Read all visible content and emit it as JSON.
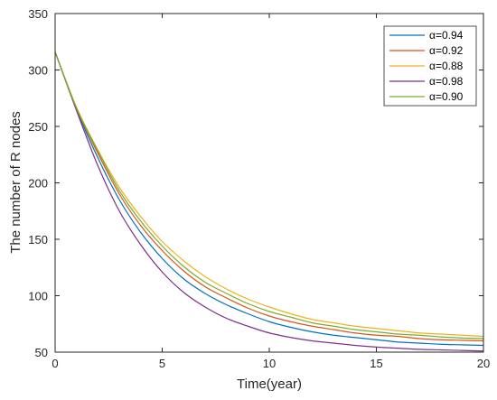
{
  "chart_data": {
    "type": "line",
    "title": "",
    "xlabel": "Time(year)",
    "ylabel": "The number of R nodes",
    "xlim": [
      0,
      20
    ],
    "ylim": [
      50,
      350
    ],
    "xticks": [
      0,
      5,
      10,
      15,
      20
    ],
    "yticks": [
      50,
      100,
      150,
      200,
      250,
      300,
      350
    ],
    "grid": false,
    "legend_position": "top-right",
    "x": [
      0,
      1,
      2,
      3,
      4,
      5,
      6,
      7,
      8,
      9,
      10,
      11,
      12,
      13,
      14,
      15,
      16,
      17,
      18,
      19,
      20
    ],
    "series": [
      {
        "name": "α=0.94",
        "color": "#0072BD",
        "values": [
          316,
          265,
          222,
          185,
          156,
          133,
          115,
          102,
          92,
          84,
          77,
          72,
          68,
          65,
          63,
          61,
          59,
          58,
          57,
          56.5,
          56
        ]
      },
      {
        "name": "α=0.92",
        "color": "#D95319",
        "values": [
          316,
          266,
          226,
          190,
          162,
          140,
          122,
          108,
          98,
          89,
          82,
          77,
          73,
          70,
          67,
          65,
          64,
          62,
          61,
          60.5,
          60
        ]
      },
      {
        "name": "α=0.88",
        "color": "#EDB120",
        "values": [
          316,
          267,
          229,
          196,
          170,
          148,
          131,
          117,
          106,
          97,
          90,
          84,
          79,
          76,
          73,
          71,
          69,
          67,
          66,
          65,
          64
        ]
      },
      {
        "name": "α=0.98",
        "color": "#7E2F8E",
        "values": [
          316,
          264,
          215,
          175,
          145,
          121,
          103,
          90,
          80,
          73,
          67,
          63,
          60,
          58,
          56,
          54.5,
          53.5,
          52.5,
          52,
          51.5,
          51
        ]
      },
      {
        "name": "α=0.90",
        "color": "#77AC30",
        "values": [
          316,
          266,
          228,
          193,
          166,
          144,
          126,
          112,
          102,
          93,
          86,
          81,
          76,
          73,
          70,
          68,
          66,
          65,
          63.5,
          62.5,
          62
        ]
      }
    ]
  }
}
